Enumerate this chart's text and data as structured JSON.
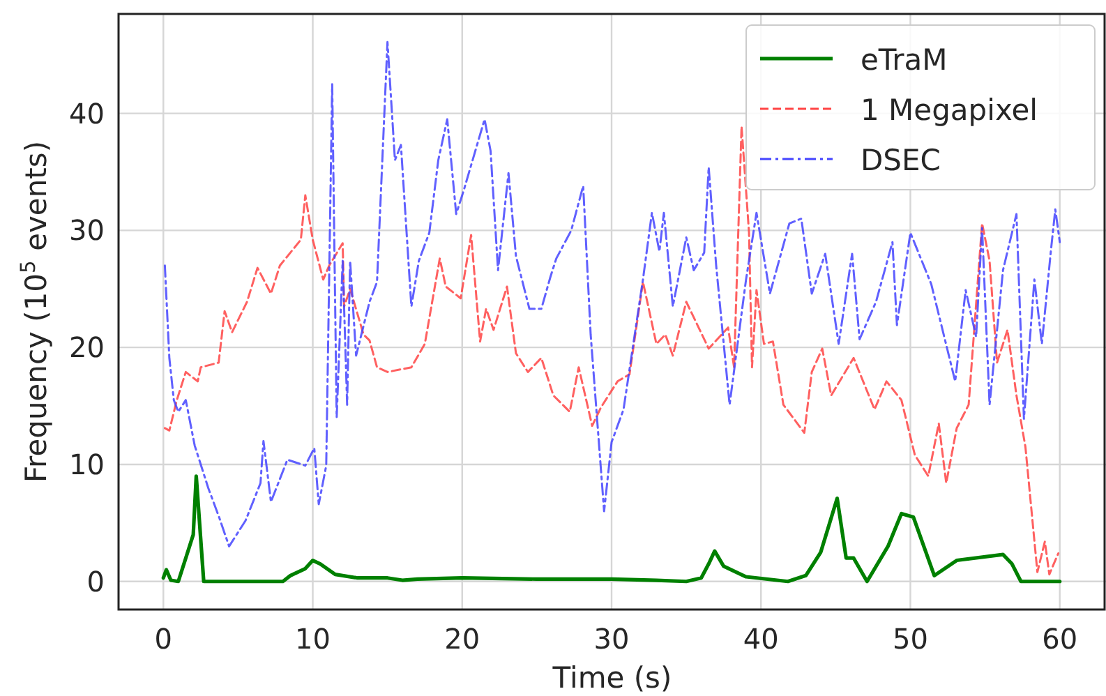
{
  "chart_data": {
    "type": "line",
    "xlabel": "Time (s)",
    "ylabel": "Frequency (10$^{5}$ events)",
    "xlim": [
      -3,
      63
    ],
    "ylim": [
      -2.4,
      48.5
    ],
    "xticks": [
      0,
      10,
      20,
      30,
      40,
      50,
      60
    ],
    "yticks": [
      0,
      10,
      20,
      30,
      40
    ],
    "grid": true,
    "legend": "top right",
    "marker": "none",
    "series": [
      {
        "name": "eTraM",
        "color": "#008000",
        "line_style": "solid",
        "x": [
          0,
          0.2,
          0.5,
          1,
          1.5,
          2,
          2.2,
          2.7,
          5,
          8,
          8.5,
          9.5,
          10,
          10.5,
          11.5,
          13,
          15,
          16,
          17,
          20,
          25,
          30,
          33,
          35,
          36,
          36.5,
          36.9,
          37.5,
          39,
          41.8,
          43,
          44,
          45.1,
          45.7,
          46.2,
          47.1,
          48.5,
          49.4,
          50.2,
          51.6,
          53.1,
          56.2,
          56.8,
          57.4,
          60
        ],
        "values": [
          0.3,
          1,
          0.1,
          0,
          2,
          4,
          9,
          0,
          0,
          0,
          0.5,
          1.1,
          1.8,
          1.5,
          0.6,
          0.3,
          0.3,
          0.1,
          0.2,
          0.3,
          0.2,
          0.2,
          0.1,
          0,
          0.3,
          1.5,
          2.6,
          1.3,
          0.4,
          0,
          0.5,
          2.5,
          7.1,
          2,
          2,
          0,
          3,
          5.8,
          5.5,
          0.5,
          1.8,
          2.3,
          1.5,
          0,
          0
        ]
      },
      {
        "name": "1 Megapixel",
        "color": "#ff4444",
        "line_style": "dashed",
        "x": [
          0.1,
          0.4,
          0.9,
          1.5,
          2.3,
          2.5,
          3.7,
          4.1,
          4.6,
          5.6,
          6.3,
          7.2,
          7.8,
          9.2,
          9.5,
          10,
          10.7,
          11.1,
          12,
          12.1,
          12.5,
          13.4,
          13.8,
          14.3,
          15,
          16.6,
          17.5,
          18.5,
          18.9,
          19.9,
          20.6,
          21.2,
          21.6,
          22.1,
          23,
          23.6,
          24.4,
          25.3,
          26.1,
          27.2,
          27.8,
          28.7,
          29.3,
          30.4,
          31.2,
          32.1,
          33,
          33.6,
          34.1,
          35,
          36.5,
          37.8,
          38.2,
          38.7,
          39.2,
          39.4,
          39.7,
          40.2,
          40.8,
          41.5,
          42.2,
          42.9,
          43.4,
          44.1,
          44.7,
          46.2,
          47.6,
          48.4,
          49.4,
          50.3,
          51.2,
          51.9,
          52.4,
          53.1,
          53.9,
          54.8,
          55.3,
          55.8,
          56.5,
          57.1,
          57.7,
          58.5,
          59,
          59.3,
          59.9
        ],
        "values": [
          13.1,
          12.9,
          15.5,
          17.9,
          17.1,
          18.3,
          18.7,
          23.1,
          21.3,
          23.9,
          26.8,
          24.6,
          27,
          29.2,
          33,
          29.2,
          25.8,
          27,
          28.9,
          23.5,
          25,
          21.1,
          20.6,
          18.3,
          17.9,
          18.3,
          20.3,
          27.6,
          25.2,
          24.2,
          29.6,
          20.5,
          23.3,
          21.5,
          25.2,
          19.5,
          17.9,
          19.1,
          15.9,
          14.5,
          18.3,
          13.3,
          14.9,
          17.1,
          17.7,
          25.6,
          20.3,
          21.1,
          19.3,
          23.9,
          19.9,
          21.7,
          18.3,
          38.9,
          29.8,
          18.3,
          24.9,
          20.3,
          20.5,
          15.1,
          13.9,
          12.7,
          17.9,
          19.9,
          15.9,
          19.1,
          14.7,
          17.1,
          15.5,
          10.8,
          9,
          13.5,
          8.4,
          13.1,
          15.1,
          30.6,
          27.4,
          18.7,
          21.5,
          15.9,
          11.5,
          0.8,
          3.4,
          0.6,
          2.4
        ]
      },
      {
        "name": "DSEC",
        "color": "#4444ff",
        "line_style": "dashdot",
        "x": [
          0.1,
          0.4,
          0.7,
          1,
          1.5,
          2.1,
          3,
          3.7,
          4.4,
          5.5,
          6.5,
          6.7,
          7.2,
          8.3,
          9.5,
          10.1,
          10.4,
          10.9,
          11.3,
          11.6,
          12,
          12.3,
          12.5,
          12.9,
          13.8,
          14.3,
          15,
          15.5,
          15.9,
          16.6,
          17.1,
          17.8,
          18.4,
          19,
          19.6,
          20.1,
          21.5,
          21.9,
          22.4,
          23.1,
          23.6,
          24.5,
          25.3,
          25.9,
          26.3,
          27.3,
          28.1,
          28.6,
          29.5,
          30,
          30.8,
          32.1,
          32.7,
          33.2,
          33.5,
          34.1,
          35,
          35.5,
          36.2,
          36.5,
          37,
          37.9,
          39,
          39.7,
          40.6,
          41.9,
          42.7,
          43.4,
          44.3,
          45.2,
          46.1,
          46.6,
          47.7,
          48.8,
          49.1,
          50,
          51.4,
          53,
          53.7,
          54.4,
          54.8,
          55.3,
          56.2,
          57.1,
          57.6,
          58.3,
          58.8,
          59.4,
          59.7,
          60
        ],
        "values": [
          27,
          19.1,
          15.5,
          14.5,
          15.5,
          11.6,
          8,
          5.6,
          3,
          5.2,
          8.4,
          12,
          6.8,
          10.4,
          9.9,
          11.4,
          6.6,
          9.9,
          42.5,
          14,
          27.4,
          15.1,
          27.4,
          19.3,
          23.9,
          25.6,
          46.1,
          36,
          37.3,
          23.5,
          27.4,
          29.8,
          36,
          39.5,
          31.4,
          33.4,
          39.5,
          36.8,
          26.6,
          34.9,
          27.8,
          23.3,
          23.3,
          26,
          27.6,
          30,
          33.8,
          21.1,
          6,
          11.9,
          14.7,
          25.8,
          31.5,
          28.2,
          31.5,
          23.5,
          29.4,
          26.6,
          28.1,
          35.4,
          27,
          15.1,
          25.8,
          31.5,
          24.6,
          30.6,
          31,
          24.6,
          28,
          20.3,
          28,
          20.7,
          23.9,
          29,
          21.9,
          29.8,
          25.4,
          17.1,
          24.9,
          20.9,
          30.2,
          15.1,
          26.6,
          31.4,
          13.9,
          25.8,
          20.3,
          28.2,
          31.8,
          29
        ]
      }
    ]
  }
}
